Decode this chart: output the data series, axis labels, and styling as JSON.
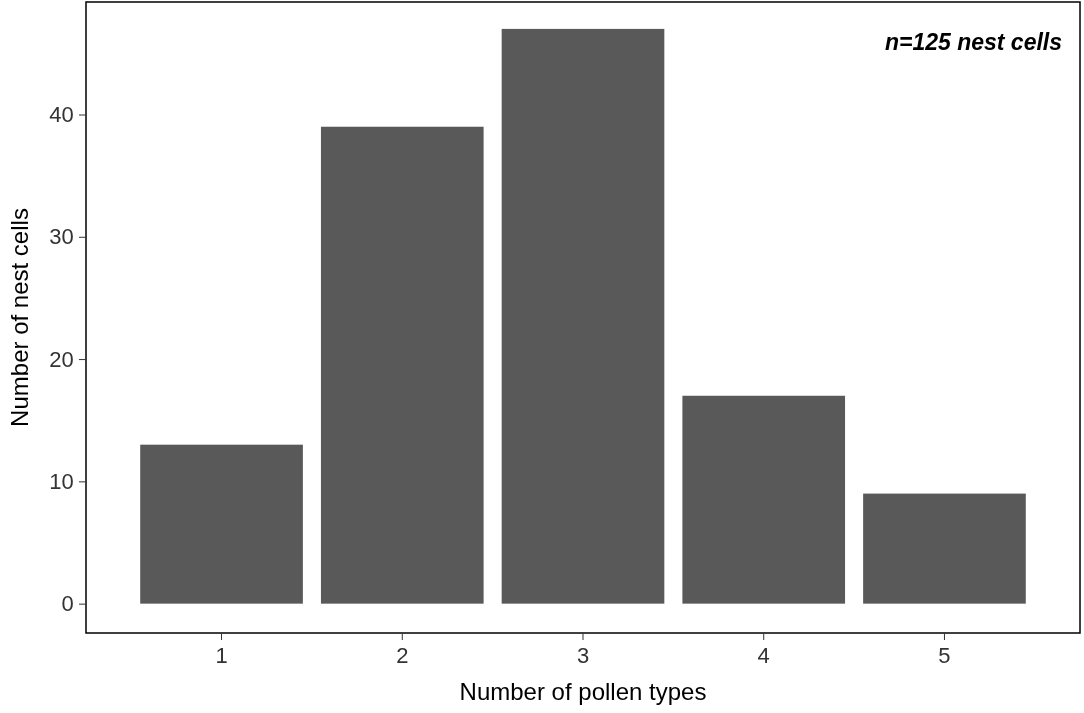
{
  "chart_data": {
    "type": "bar",
    "xlabel": "Number of pollen types",
    "ylabel": "Number of nest cells",
    "categories": [
      "1",
      "2",
      "3",
      "4",
      "5"
    ],
    "values": [
      13,
      39,
      47,
      17,
      9
    ],
    "color": "#595959",
    "ylim": [
      -2.4,
      49.2
    ],
    "yticks": [
      0,
      10,
      20,
      30,
      40
    ],
    "grid": false,
    "annotations": [
      "n=125 nest cells"
    ]
  }
}
